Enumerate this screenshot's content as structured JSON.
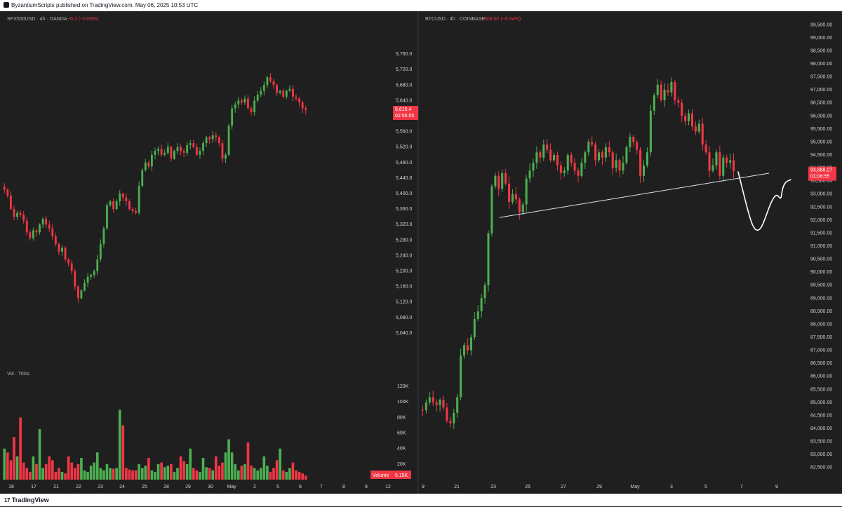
{
  "header": {
    "published": "ByzantiumScripts published on TradingView.com, May 06, 2025 10:53 UTC"
  },
  "footer": {
    "brand": "TradingView",
    "logo_icon": "tradingview-logo-icon"
  },
  "colors": {
    "up": "#4caf50",
    "down": "#f23645",
    "bg": "#1f1f1f",
    "axis": "#d1d4dc"
  },
  "chart_data": [
    {
      "type": "candlestick",
      "symbol": "SPX500USD",
      "interval": "4h",
      "source": "OANDA",
      "change": "−0.2 (−0.00%)",
      "last_price": "5,615.4",
      "countdown": "02:06:55",
      "y_ticks": [
        "5,760.0",
        "5,720.0",
        "5,680.0",
        "5,640.0",
        "5,600.0",
        "5,560.0",
        "5,520.0",
        "5,480.0",
        "5,440.0",
        "5,400.0",
        "5,360.0",
        "5,320.0",
        "5,280.0",
        "5,240.0",
        "5,200.0",
        "5,160.0",
        "5,120.0",
        "5,080.0",
        "5,040.0"
      ],
      "x_ticks": [
        "16",
        "17",
        "21",
        "22",
        "23",
        "24",
        "25",
        "28",
        "29",
        "30",
        "May",
        "2",
        "5",
        "6",
        "7",
        "8",
        "9",
        "12"
      ],
      "ylim": [
        5020,
        5780
      ],
      "close_path": [
        5410,
        5395,
        5360,
        5340,
        5350,
        5345,
        5330,
        5300,
        5285,
        5305,
        5300,
        5320,
        5335,
        5320,
        5310,
        5290,
        5270,
        5250,
        5260,
        5230,
        5220,
        5200,
        5160,
        5130,
        5150,
        5170,
        5185,
        5190,
        5200,
        5230,
        5270,
        5310,
        5370,
        5380,
        5360,
        5380,
        5400,
        5390,
        5380,
        5360,
        5355,
        5350,
        5420,
        5460,
        5480,
        5470,
        5500,
        5510,
        5515,
        5500,
        5505,
        5520,
        5490,
        5510,
        5520,
        5510,
        5505,
        5525,
        5530,
        5520,
        5500,
        5510,
        5530,
        5545,
        5540,
        5550,
        5545,
        5530,
        5490,
        5500,
        5575,
        5620,
        5630,
        5640,
        5635,
        5645,
        5620,
        5610,
        5640,
        5655,
        5665,
        5680,
        5700,
        5690,
        5680,
        5660,
        5665,
        5650,
        5665,
        5670,
        5650,
        5645,
        5635,
        5620,
        5615.4
      ],
      "volume": {
        "label": "Vol · Ticks",
        "y_ticks": [
          "120K",
          "100K",
          "80K",
          "60K",
          "40K",
          "20K"
        ],
        "current": "5.15K",
        "current_label": "Volume",
        "ylim": [
          0,
          130000
        ],
        "values": [
          40,
          35,
          25,
          55,
          30,
          80,
          22,
          15,
          10,
          30,
          20,
          65,
          15,
          20,
          30,
          25,
          10,
          15,
          10,
          8,
          30,
          22,
          15,
          20,
          28,
          12,
          10,
          18,
          22,
          35,
          15,
          12,
          20,
          15,
          14,
          15,
          90,
          70,
          15,
          13,
          12,
          12,
          20,
          15,
          18,
          28,
          12,
          10,
          20,
          22,
          16,
          18,
          20,
          10,
          15,
          30,
          24,
          20,
          40,
          15,
          12,
          10,
          28,
          16,
          15,
          12,
          30,
          18,
          22,
          35,
          52,
          35,
          20,
          12,
          18,
          20,
          48,
          18,
          15,
          12,
          15,
          30,
          18,
          10,
          15,
          25,
          40,
          12,
          10,
          15,
          22,
          12,
          10,
          8,
          5.15
        ]
      }
    },
    {
      "type": "candlestick",
      "symbol": "BTCUSD",
      "interval": "4h",
      "source": "COINBASE",
      "change": "−508.02 (−0.54%)",
      "last_price": "93,888.27",
      "countdown": "01:06:55",
      "y_ticks": [
        "99,500.00",
        "99,000.00",
        "98,500.00",
        "98,000.00",
        "97,500.00",
        "97,000.00",
        "96,500.00",
        "96,000.00",
        "95,500.00",
        "95,000.00",
        "94,500.00",
        "94,000.00",
        "93,500.00",
        "93,000.00",
        "92,500.00",
        "92,000.00",
        "91,500.00",
        "91,000.00",
        "90,500.00",
        "90,000.00",
        "89,500.00",
        "89,000.00",
        "88,500.00",
        "88,000.00",
        "87,500.00",
        "87,000.00",
        "86,500.00",
        "86,000.00",
        "85,500.00",
        "85,000.00",
        "84,500.00",
        "84,000.00",
        "83,500.00",
        "83,000.00",
        "82,500.00"
      ],
      "x_ticks": [
        "9",
        "21",
        "23",
        "25",
        "27",
        "29",
        "May",
        "3",
        "5",
        "7",
        "9"
      ],
      "ylim": [
        82250,
        99750
      ],
      "close_path": [
        84700,
        85000,
        85200,
        85000,
        84900,
        85100,
        84800,
        84300,
        84200,
        84600,
        85200,
        86800,
        87200,
        87000,
        87500,
        88200,
        88500,
        89000,
        89500,
        91500,
        93300,
        93700,
        93200,
        93800,
        93400,
        92700,
        93000,
        92800,
        92300,
        92600,
        93600,
        93900,
        94200,
        94600,
        94400,
        94900,
        94700,
        94300,
        94500,
        94100,
        93800,
        93900,
        94500,
        94200,
        93900,
        93700,
        94200,
        94600,
        95000,
        94900,
        94300,
        94600,
        94400,
        94800,
        94600,
        94000,
        94300,
        93900,
        94200,
        94800,
        95200,
        95000,
        94700,
        93700,
        94100,
        94600,
        96200,
        96800,
        97200,
        96600,
        97000,
        96900,
        97300,
        96600,
        96500,
        96000,
        95800,
        96100,
        95600,
        95400,
        95700,
        94900,
        94600,
        93900,
        94100,
        94600,
        93700,
        94400,
        94200,
        94300,
        93888
      ],
      "annotations": {
        "trendline": {
          "from": [
            23.5,
            92100
          ],
          "to": [
            7.4,
            93800
          ]
        },
        "projection": "hand-drawn path dipping to ~91,600 then recovering toward ~93,500"
      }
    }
  ]
}
